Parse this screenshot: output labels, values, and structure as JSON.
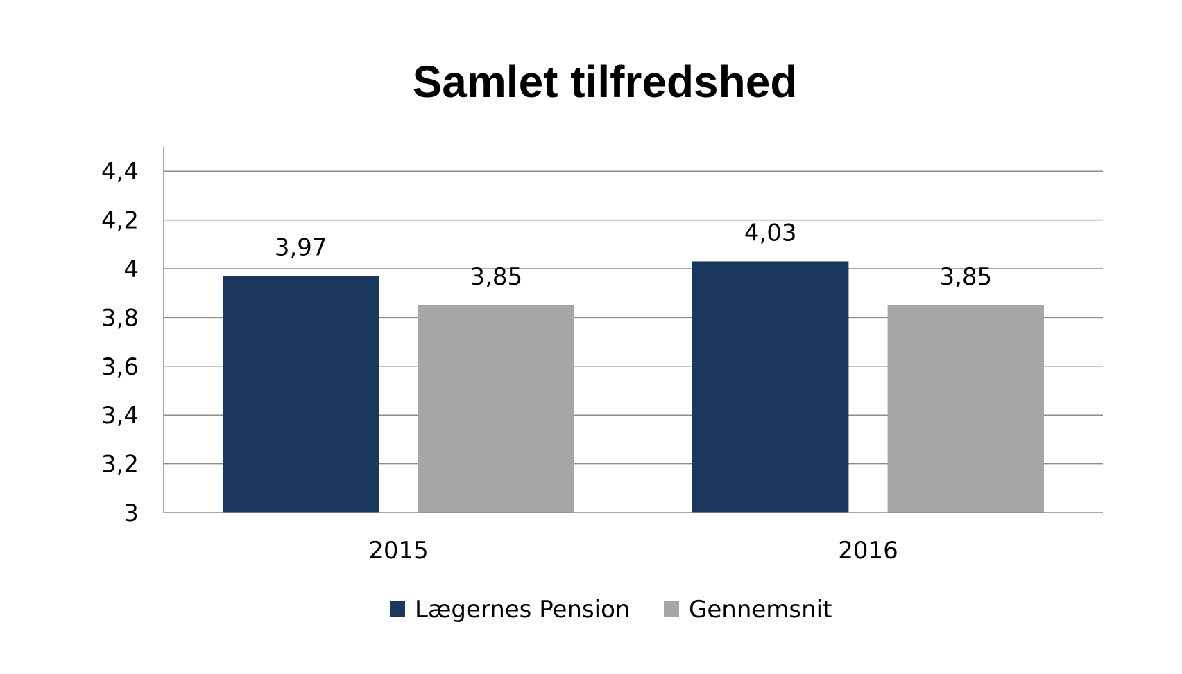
{
  "chart_data": {
    "type": "bar",
    "title": "Samlet tilfredshed",
    "xlabel": "",
    "ylabel": "",
    "categories": [
      "2015",
      "2016"
    ],
    "series": [
      {
        "name": "Lægernes Pension",
        "values": [
          3.97,
          4.03
        ],
        "labels": [
          "3,97",
          "4,03"
        ],
        "color": "#1a375e"
      },
      {
        "name": "Gennemsnit",
        "values": [
          3.85,
          3.85
        ],
        "labels": [
          "3,85",
          "3,85"
        ],
        "color": "#a6a6a6"
      }
    ],
    "ylim": [
      3,
      4.4
    ],
    "yticks": [
      3,
      3.2,
      3.4,
      3.6,
      3.8,
      4,
      4.2,
      4.4
    ],
    "ytick_labels": [
      "3",
      "3,2",
      "3,4",
      "3,6",
      "3,8",
      "4",
      "4,2",
      "4,4"
    ],
    "grid": true,
    "legend_position": "bottom"
  }
}
